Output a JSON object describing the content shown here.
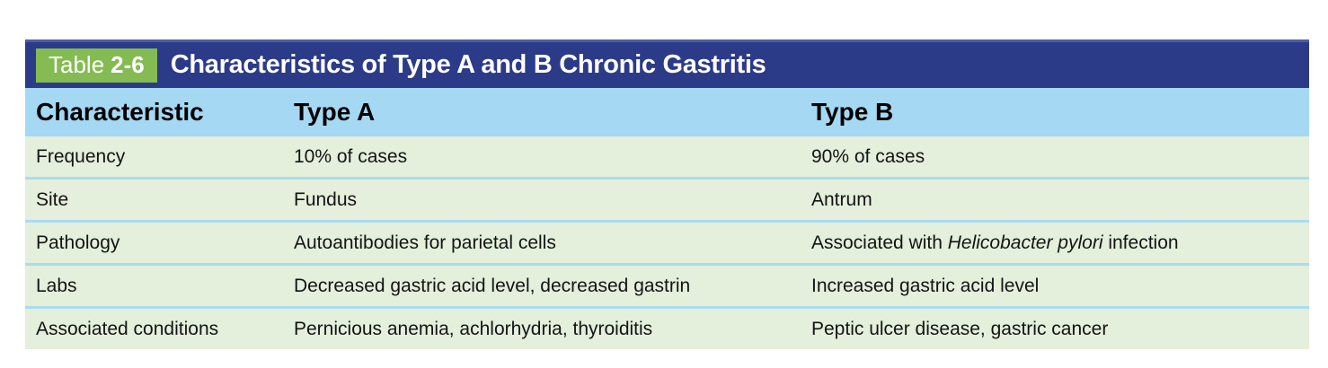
{
  "page": {
    "background": "#ffffff"
  },
  "table": {
    "badge": {
      "label": "Table",
      "number": "2-6"
    },
    "title": "Characteristics of Type A and B Chronic Gastritis",
    "columns": [
      "Characteristic",
      "Type A",
      "Type B"
    ],
    "rows": [
      [
        [
          {
            "text": "Frequency"
          }
        ],
        [
          {
            "text": "10% of cases"
          }
        ],
        [
          {
            "text": "90% of cases"
          }
        ]
      ],
      [
        [
          {
            "text": "Site"
          }
        ],
        [
          {
            "text": "Fundus"
          }
        ],
        [
          {
            "text": "Antrum"
          }
        ]
      ],
      [
        [
          {
            "text": "Pathology"
          }
        ],
        [
          {
            "text": "Autoantibodies for parietal cells"
          }
        ],
        [
          {
            "text": "Associated with "
          },
          {
            "text": "Helicobacter pylori",
            "italic": true
          },
          {
            "text": " infection"
          }
        ]
      ],
      [
        [
          {
            "text": "Labs"
          }
        ],
        [
          {
            "text": "Decreased gastric acid level, decreased gastrin"
          }
        ],
        [
          {
            "text": "Increased gastric acid level"
          }
        ]
      ],
      [
        [
          {
            "text": "Associated conditions"
          }
        ],
        [
          {
            "text": "Pernicious anemia, achlorhydria, thyroiditis"
          }
        ],
        [
          {
            "text": "Peptic ulcer disease, gastric cancer"
          }
        ]
      ]
    ],
    "colors": {
      "title_band_navy": "#2b3b87",
      "title_band_top_edge": "#4d5ea6",
      "badge_green": "#84bb52",
      "header_blue": "#a5d8f3",
      "row_green": "#e4efdc",
      "row_separator_blue": "#a9dcf2",
      "title_text": "#ffffff",
      "body_text": "#141414"
    }
  }
}
